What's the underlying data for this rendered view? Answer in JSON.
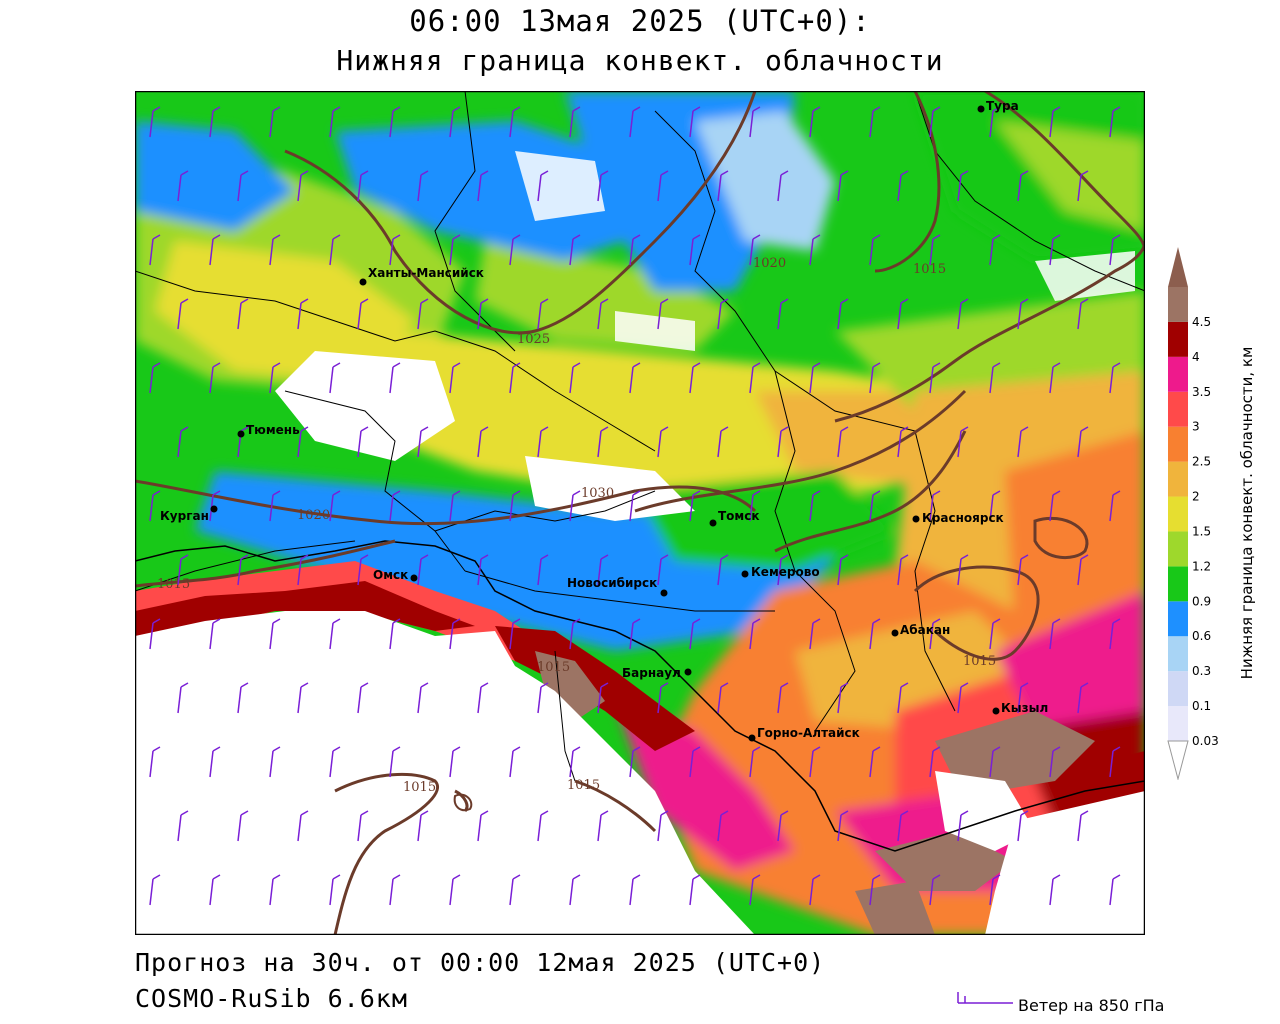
{
  "title": {
    "line1": "06:00 13мая 2025 (UTC+0):",
    "line2": "Нижняя граница конвект. облачности"
  },
  "forecast_line": "Прогноз на 30ч. от 00:00 12мая 2025 (UTC+0)",
  "model_line": "COSMO-RuSib 6.6км",
  "wind_legend": "Ветер на 850 гПа",
  "colorbar": {
    "axis_label": "Нижняя граница конвект. облачности, км",
    "levels": [
      {
        "label": "0.03",
        "color": "#e8e8fa"
      },
      {
        "label": "0.1",
        "color": "#cfd8f5"
      },
      {
        "label": "0.3",
        "color": "#a8d4f5"
      },
      {
        "label": "0.6",
        "color": "#1e90ff"
      },
      {
        "label": "0.9",
        "color": "#18c818"
      },
      {
        "label": "1.2",
        "color": "#9ed82c"
      },
      {
        "label": "1.5",
        "color": "#e6de30"
      },
      {
        "label": "2",
        "color": "#f0b43c"
      },
      {
        "label": "2.5",
        "color": "#f88030"
      },
      {
        "label": "3",
        "color": "#ff4a4a"
      },
      {
        "label": "3.5",
        "color": "#ee1a8c"
      },
      {
        "label": "4",
        "color": "#a00000"
      },
      {
        "label": "4.5",
        "color": "#9c7464"
      }
    ],
    "top_color": "#8c5e4e",
    "bottom_color": "#ffffff"
  },
  "cities": [
    {
      "id": "tura",
      "name": "Тура"
    },
    {
      "id": "khanty-mansiysk",
      "name": "Ханты-Мансийск"
    },
    {
      "id": "tyumen",
      "name": "Тюмень"
    },
    {
      "id": "kurgan",
      "name": "Курган"
    },
    {
      "id": "omsk",
      "name": "Омск"
    },
    {
      "id": "novosibirsk",
      "name": "Новосибирск"
    },
    {
      "id": "tomsk",
      "name": "Томск"
    },
    {
      "id": "kemerovo",
      "name": "Кемерово"
    },
    {
      "id": "krasnoyarsk",
      "name": "Красноярск"
    },
    {
      "id": "abakan",
      "name": "Абакан"
    },
    {
      "id": "barnaul",
      "name": "Барнаул"
    },
    {
      "id": "kyzyl",
      "name": "Кызыл"
    },
    {
      "id": "gorno-altaysk",
      "name": "Горно-Алтайск"
    }
  ],
  "isobar_labels": [
    "1020",
    "1015",
    "1025",
    "1030",
    "1020",
    "1015",
    "1015",
    "1015",
    "1015",
    "1015"
  ],
  "colors": {
    "isobar": "#6b3b2a",
    "wind_barb": "#7a1fd6",
    "border": "#000000"
  }
}
